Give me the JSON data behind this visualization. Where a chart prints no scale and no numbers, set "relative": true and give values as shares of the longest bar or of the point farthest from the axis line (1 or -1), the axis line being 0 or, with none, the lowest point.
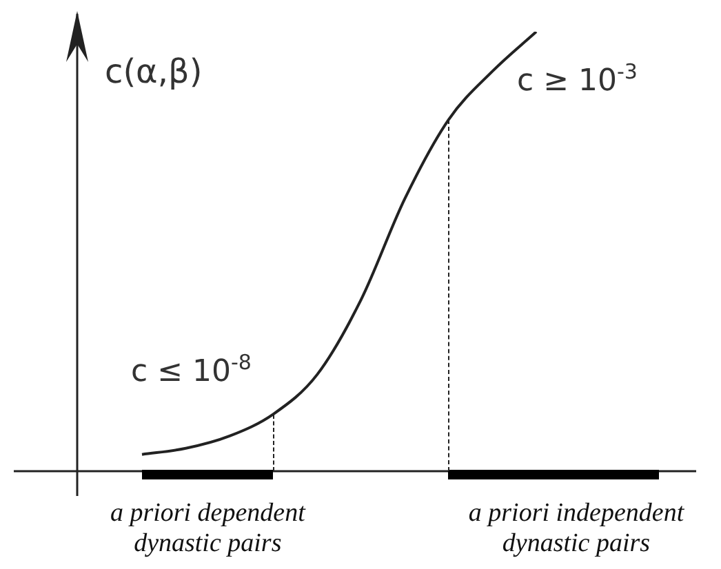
{
  "chart_data": {
    "type": "line",
    "relative": true,
    "ylabel": "c(α,β)",
    "marker": "none",
    "line_style": "solid",
    "categories": [
      null,
      null,
      null,
      null,
      null,
      null,
      null,
      null,
      null,
      null
    ],
    "series": [
      {
        "color": "#222222",
        "values": [
          0.038,
          0.052,
          0.08,
          0.13,
          0.22,
          0.39,
          0.62,
          0.8,
          0.91,
          1.0
        ]
      }
    ],
    "annotations": [
      "c ≤ 10$^{-8}$",
      "c ≥ 10$^{-3}$",
      "a priori dependent dynastic pairs",
      "a priori independent dynastic pairs"
    ]
  }
}
